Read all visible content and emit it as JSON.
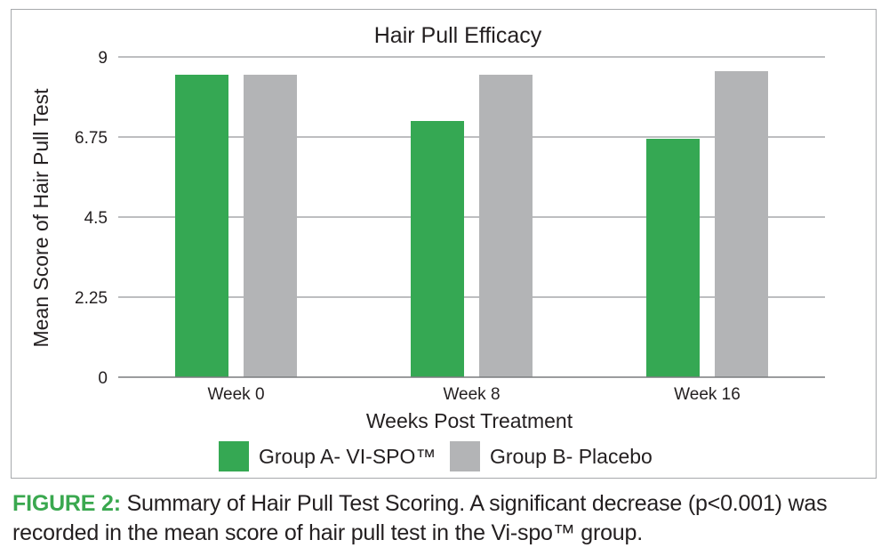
{
  "chart_data": {
    "type": "bar",
    "title": "Hair Pull Efficacy",
    "xlabel": "Weeks Post Treatment",
    "ylabel": "Mean Score of Hair Pull Test",
    "categories": [
      "Week 0",
      "Week 8",
      "Week 16"
    ],
    "yticks": [
      "0",
      "2.25",
      "4.5",
      "6.75",
      "9"
    ],
    "ylim": [
      0,
      9
    ],
    "grid": true,
    "legend_position": "bottom",
    "series": [
      {
        "name": "Group A- VI-SPO™",
        "color": "#35a853",
        "values": [
          8.5,
          7.2,
          6.7
        ]
      },
      {
        "name": "Group B- Placebo",
        "color": "#b3b4b6",
        "values": [
          8.5,
          8.5,
          8.6
        ]
      }
    ]
  },
  "caption": {
    "label": "FIGURE 2:",
    "text": "Summary of Hair Pull Test Scoring. A significant decrease (p<0.001) was recorded in the mean score of hair pull test in the Vi-spo™ group."
  }
}
